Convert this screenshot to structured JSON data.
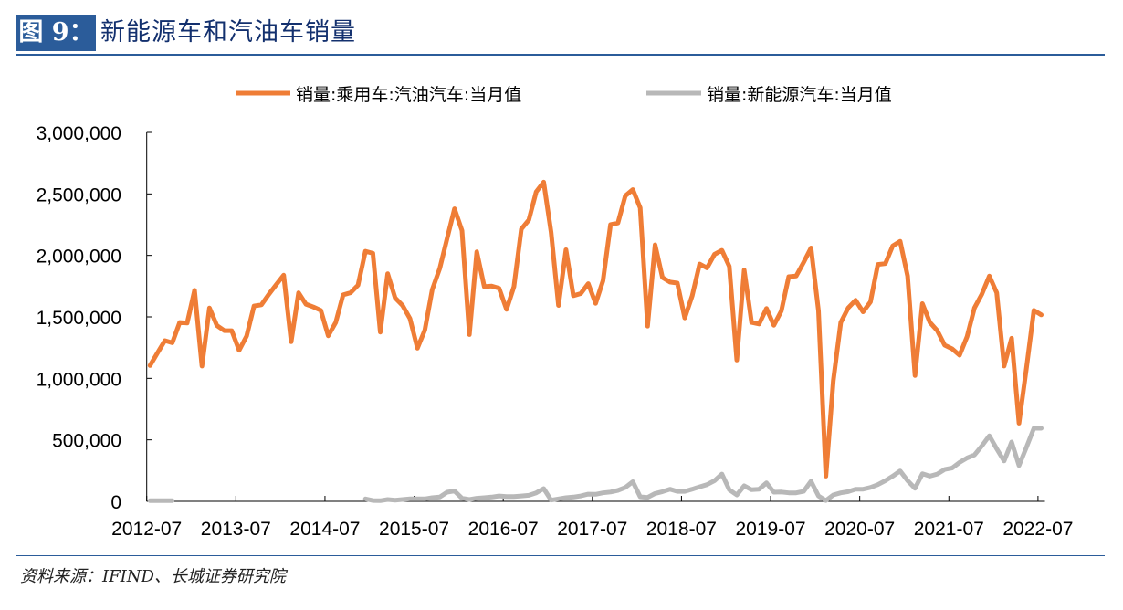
{
  "header": {
    "figure_label": "图 9：",
    "title": "新能源车和汽油车销量"
  },
  "footer": {
    "source": "资料来源：IFIND、长城证券研究院"
  },
  "colors": {
    "gasoline": "#ef7d36",
    "nev": "#b8b8b8",
    "brand": "#2b5c9a"
  },
  "chart_data": {
    "type": "line",
    "title": "新能源车和汽油车销量",
    "xlabel": "",
    "ylabel": "",
    "ylim": [
      0,
      3000000
    ],
    "yticks": [
      0,
      500000,
      1000000,
      1500000,
      2000000,
      2500000,
      3000000
    ],
    "ytick_labels": [
      "0",
      "500,000",
      "1,000,000",
      "1,500,000",
      "2,000,000",
      "2,500,000",
      "3,000,000"
    ],
    "xtick_labels": [
      "2012-07",
      "2013-07",
      "2014-07",
      "2015-07",
      "2016-07",
      "2017-07",
      "2018-07",
      "2019-07",
      "2020-07",
      "2021-07",
      "2022-07"
    ],
    "x_start": "2012-07",
    "x_end": "2022-07",
    "x_step": "month",
    "legend_position": "top-center",
    "grid": false,
    "series": [
      {
        "name": "销量:乘用车:汽油汽车:当月值",
        "color": "#ef7d36",
        "values": [
          1104000,
          1206000,
          1307000,
          1289000,
          1455000,
          1450000,
          1716000,
          1100000,
          1573000,
          1430000,
          1388000,
          1388000,
          1228000,
          1344000,
          1588000,
          1598000,
          1684000,
          1763000,
          1839000,
          1297000,
          1696000,
          1603000,
          1580000,
          1553000,
          1346000,
          1455000,
          1679000,
          1696000,
          1758000,
          2034000,
          2017000,
          1376000,
          1851000,
          1654000,
          1593000,
          1487000,
          1245000,
          1393000,
          1721000,
          1893000,
          2138000,
          2379000,
          2202000,
          1356000,
          2029000,
          1746000,
          1750000,
          1733000,
          1561000,
          1746000,
          2214000,
          2288000,
          2517000,
          2596000,
          2189000,
          1593000,
          2046000,
          1672000,
          1689000,
          1770000,
          1610000,
          1795000,
          2251000,
          2263000,
          2485000,
          2535000,
          2387000,
          1425000,
          2086000,
          1820000,
          1783000,
          1775000,
          1491000,
          1672000,
          1930000,
          1898000,
          2009000,
          2041000,
          1911000,
          1149000,
          1881000,
          1455000,
          1442000,
          1568000,
          1432000,
          1548000,
          1827000,
          1832000,
          1943000,
          2061000,
          1548000,
          205000,
          981000,
          1455000,
          1573000,
          1635000,
          1541000,
          1622000,
          1926000,
          1933000,
          2078000,
          2115000,
          1832000,
          1023000,
          1608000,
          1455000,
          1388000,
          1270000,
          1240000,
          1188000,
          1339000,
          1573000,
          1684000,
          1832000,
          1696000,
          1100000,
          1326000,
          636000,
          1080000,
          1553000,
          1516000
        ]
      },
      {
        "name": "销量:新能源汽车:当月值",
        "color": "#b8b8b8",
        "values": [
          5000,
          5000,
          5000,
          5000,
          null,
          null,
          null,
          null,
          null,
          null,
          null,
          null,
          null,
          null,
          null,
          null,
          null,
          null,
          null,
          null,
          null,
          null,
          null,
          null,
          null,
          null,
          null,
          null,
          null,
          20000,
          7000,
          5000,
          15000,
          10000,
          15000,
          20000,
          20000,
          20000,
          30000,
          35000,
          74000,
          84000,
          25000,
          15000,
          25000,
          30000,
          35000,
          44000,
          39000,
          39000,
          44000,
          49000,
          69000,
          104000,
          10000,
          20000,
          30000,
          35000,
          44000,
          59000,
          57000,
          69000,
          76000,
          89000,
          113000,
          160000,
          37000,
          32000,
          64000,
          79000,
          99000,
          81000,
          81000,
          99000,
          118000,
          136000,
          168000,
          222000,
          94000,
          52000,
          126000,
          94000,
          99000,
          150000,
          74000,
          76000,
          69000,
          69000,
          81000,
          163000,
          44000,
          7000,
          52000,
          69000,
          79000,
          99000,
          99000,
          113000,
          136000,
          168000,
          205000,
          247000,
          168000,
          106000,
          224000,
          205000,
          222000,
          259000,
          271000,
          316000,
          353000,
          377000,
          451000,
          533000,
          427000,
          328000,
          483000,
          291000,
          439000,
          594000,
          594000
        ]
      }
    ]
  }
}
